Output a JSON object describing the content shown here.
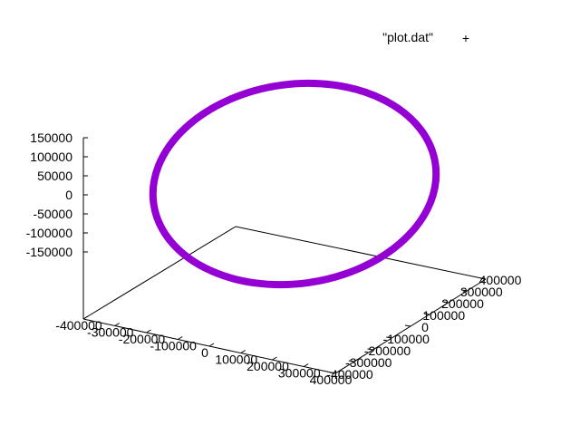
{
  "chart_data": {
    "type": "scatter",
    "dimension": "3d",
    "title": "",
    "series": [
      {
        "name": "\"plot.dat\"",
        "marker": "+",
        "color": "#9400d3"
      }
    ],
    "legend": {
      "label": "\"plot.dat\"",
      "marker": "+",
      "placement": "top-right"
    },
    "x_axis": {
      "range": [
        -400000,
        400000
      ],
      "ticks": [
        "-400000",
        "-300000",
        "-200000",
        "-100000",
        "0",
        "100000",
        "200000",
        "300000",
        "400000"
      ]
    },
    "y_axis": {
      "range": [
        -400000,
        400000
      ],
      "ticks": [
        "-400000",
        "-300000",
        "-200000",
        "-100000",
        "0",
        "100000",
        "200000",
        "300000",
        "400000"
      ]
    },
    "z_axis": {
      "range": [
        -150000,
        150000
      ],
      "ticks": [
        "150000",
        "100000",
        "50000",
        "0",
        "-50000",
        "-100000",
        "-150000"
      ]
    },
    "grid": false,
    "shape": "closed elliptical ring of densely packed points"
  }
}
